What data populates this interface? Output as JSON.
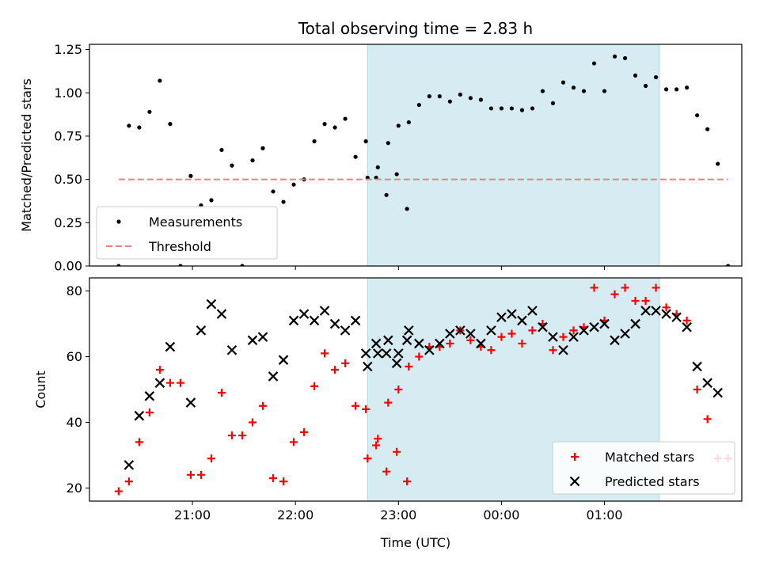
{
  "title": "Total observing time = 2.83 h",
  "chart_data": [
    {
      "type": "scatter",
      "ylabel": "Matched/Predicted stars",
      "ylim": [
        0,
        1.28
      ],
      "yticks": [
        "0.00",
        "0.25",
        "0.50",
        "0.75",
        "1.00",
        "1.25"
      ],
      "shaded_span": [
        "22:42",
        "01:32"
      ],
      "legend_position": "lower-left",
      "series": [
        {
          "name": "Measurements",
          "style": "point",
          "color": "#000000",
          "points": [
            [
              "20:17",
              0.0
            ],
            [
              "20:23",
              0.81
            ],
            [
              "20:29",
              0.8
            ],
            [
              "20:35",
              0.89
            ],
            [
              "20:41",
              1.07
            ],
            [
              "20:47",
              0.82
            ],
            [
              "20:53",
              0.0
            ],
            [
              "20:59",
              0.52
            ],
            [
              "21:05",
              0.35
            ],
            [
              "21:11",
              0.38
            ],
            [
              "21:17",
              0.67
            ],
            [
              "21:23",
              0.58
            ],
            [
              "21:29",
              0.0
            ],
            [
              "21:35",
              0.61
            ],
            [
              "21:41",
              0.68
            ],
            [
              "21:47",
              0.43
            ],
            [
              "21:53",
              0.37
            ],
            [
              "21:59",
              0.47
            ],
            [
              "22:05",
              0.5
            ],
            [
              "22:11",
              0.72
            ],
            [
              "22:17",
              0.82
            ],
            [
              "22:23",
              0.8
            ],
            [
              "22:29",
              0.85
            ],
            [
              "22:35",
              0.63
            ],
            [
              "22:41",
              0.72
            ],
            [
              "22:47",
              0.51
            ],
            [
              "22:53",
              0.41
            ],
            [
              "22:59",
              0.53
            ],
            [
              "23:05",
              0.33
            ],
            [
              "22:42",
              0.51
            ],
            [
              "22:48",
              0.57
            ],
            [
              "22:54",
              0.71
            ],
            [
              "23:00",
              0.81
            ],
            [
              "23:06",
              0.83
            ],
            [
              "23:12",
              0.93
            ],
            [
              "23:18",
              0.98
            ],
            [
              "23:24",
              0.98
            ],
            [
              "23:30",
              0.95
            ],
            [
              "23:36",
              0.99
            ],
            [
              "23:42",
              0.97
            ],
            [
              "23:48",
              0.96
            ],
            [
              "23:54",
              0.91
            ],
            [
              "00:00",
              0.91
            ],
            [
              "00:06",
              0.91
            ],
            [
              "00:12",
              0.9
            ],
            [
              "00:18",
              0.91
            ],
            [
              "00:24",
              1.01
            ],
            [
              "00:30",
              0.94
            ],
            [
              "00:36",
              1.06
            ],
            [
              "00:42",
              1.03
            ],
            [
              "00:48",
              1.01
            ],
            [
              "00:54",
              1.17
            ],
            [
              "01:00",
              1.01
            ],
            [
              "01:06",
              1.21
            ],
            [
              "01:12",
              1.2
            ],
            [
              "01:18",
              1.1
            ],
            [
              "01:24",
              1.04
            ],
            [
              "01:30",
              1.09
            ],
            [
              "01:36",
              1.02
            ],
            [
              "01:42",
              1.02
            ],
            [
              "01:48",
              1.03
            ],
            [
              "01:54",
              0.87
            ],
            [
              "02:00",
              0.79
            ],
            [
              "02:06",
              0.59
            ],
            [
              "02:12",
              0.0
            ]
          ]
        },
        {
          "name": "Threshold",
          "style": "dashed-line",
          "color": "#f08080",
          "points": [
            [
              "20:17",
              0.5
            ],
            [
              "02:12",
              0.5
            ]
          ]
        }
      ]
    },
    {
      "type": "scatter",
      "xlabel": "Time (UTC)",
      "ylabel": "Count",
      "ylim": [
        16,
        84
      ],
      "yticks": [
        "20",
        "40",
        "60",
        "80"
      ],
      "xticks": [
        "21:00",
        "22:00",
        "23:00",
        "00:00",
        "01:00"
      ],
      "shaded_span": [
        "22:42",
        "01:32"
      ],
      "legend_position": "lower-right",
      "series": [
        {
          "name": "Matched stars",
          "style": "plus",
          "color": "#ff0000",
          "points": [
            [
              "20:17",
              19
            ],
            [
              "20:23",
              22
            ],
            [
              "20:29",
              34
            ],
            [
              "20:35",
              43
            ],
            [
              "20:41",
              56
            ],
            [
              "20:47",
              52
            ],
            [
              "20:53",
              52
            ],
            [
              "20:59",
              24
            ],
            [
              "21:05",
              24
            ],
            [
              "21:11",
              29
            ],
            [
              "21:17",
              49
            ],
            [
              "21:23",
              36
            ],
            [
              "21:29",
              36
            ],
            [
              "21:35",
              40
            ],
            [
              "21:41",
              45
            ],
            [
              "21:47",
              23
            ],
            [
              "21:53",
              22
            ],
            [
              "21:59",
              34
            ],
            [
              "22:05",
              37
            ],
            [
              "22:11",
              51
            ],
            [
              "22:17",
              61
            ],
            [
              "22:23",
              56
            ],
            [
              "22:29",
              58
            ],
            [
              "22:35",
              45
            ],
            [
              "22:41",
              44
            ],
            [
              "22:47",
              33
            ],
            [
              "22:53",
              25
            ],
            [
              "22:59",
              31
            ],
            [
              "23:05",
              22
            ],
            [
              "22:42",
              29
            ],
            [
              "22:48",
              35
            ],
            [
              "22:54",
              46
            ],
            [
              "23:00",
              50
            ],
            [
              "23:06",
              57
            ],
            [
              "23:12",
              60
            ],
            [
              "23:18",
              63
            ],
            [
              "23:24",
              63
            ],
            [
              "23:30",
              64
            ],
            [
              "23:36",
              68
            ],
            [
              "23:42",
              65
            ],
            [
              "23:48",
              63
            ],
            [
              "23:54",
              62
            ],
            [
              "00:00",
              66
            ],
            [
              "00:06",
              67
            ],
            [
              "00:12",
              64
            ],
            [
              "00:18",
              68
            ],
            [
              "00:24",
              70
            ],
            [
              "00:30",
              62
            ],
            [
              "00:36",
              66
            ],
            [
              "00:42",
              68
            ],
            [
              "00:48",
              69
            ],
            [
              "00:54",
              81
            ],
            [
              "01:00",
              71
            ],
            [
              "01:06",
              79
            ],
            [
              "01:12",
              81
            ],
            [
              "01:18",
              77
            ],
            [
              "01:24",
              77
            ],
            [
              "01:30",
              81
            ],
            [
              "01:36",
              75
            ],
            [
              "01:42",
              73
            ],
            [
              "01:48",
              71
            ],
            [
              "01:54",
              50
            ],
            [
              "02:00",
              41
            ],
            [
              "02:06",
              29
            ],
            [
              "02:12",
              29
            ]
          ]
        },
        {
          "name": "Predicted stars",
          "style": "x",
          "color": "#000000",
          "points": [
            [
              "20:23",
              27
            ],
            [
              "20:29",
              42
            ],
            [
              "20:35",
              48
            ],
            [
              "20:41",
              52
            ],
            [
              "20:47",
              63
            ],
            [
              "20:59",
              46
            ],
            [
              "21:05",
              68
            ],
            [
              "21:11",
              76
            ],
            [
              "21:17",
              73
            ],
            [
              "21:23",
              62
            ],
            [
              "21:35",
              65
            ],
            [
              "21:41",
              66
            ],
            [
              "21:47",
              54
            ],
            [
              "21:53",
              59
            ],
            [
              "21:59",
              71
            ],
            [
              "22:05",
              73
            ],
            [
              "22:11",
              71
            ],
            [
              "22:17",
              74
            ],
            [
              "22:23",
              70
            ],
            [
              "22:29",
              68
            ],
            [
              "22:35",
              71
            ],
            [
              "22:41",
              61
            ],
            [
              "22:47",
              64
            ],
            [
              "22:53",
              61
            ],
            [
              "22:59",
              58
            ],
            [
              "23:05",
              65
            ],
            [
              "22:42",
              57
            ],
            [
              "22:48",
              61
            ],
            [
              "22:54",
              65
            ],
            [
              "23:00",
              61
            ],
            [
              "23:06",
              68
            ],
            [
              "23:12",
              64
            ],
            [
              "23:18",
              62
            ],
            [
              "23:24",
              64
            ],
            [
              "23:30",
              67
            ],
            [
              "23:36",
              68
            ],
            [
              "23:42",
              67
            ],
            [
              "23:48",
              64
            ],
            [
              "23:54",
              68
            ],
            [
              "00:00",
              72
            ],
            [
              "00:06",
              73
            ],
            [
              "00:12",
              71
            ],
            [
              "00:18",
              74
            ],
            [
              "00:24",
              69
            ],
            [
              "00:30",
              66
            ],
            [
              "00:36",
              62
            ],
            [
              "00:42",
              66
            ],
            [
              "00:48",
              68
            ],
            [
              "00:54",
              69
            ],
            [
              "01:00",
              70
            ],
            [
              "01:06",
              65
            ],
            [
              "01:12",
              67
            ],
            [
              "01:18",
              70
            ],
            [
              "01:24",
              74
            ],
            [
              "01:30",
              74
            ],
            [
              "01:36",
              73
            ],
            [
              "01:42",
              72
            ],
            [
              "01:48",
              69
            ],
            [
              "01:54",
              57
            ],
            [
              "02:00",
              52
            ],
            [
              "02:06",
              49
            ]
          ]
        }
      ]
    }
  ]
}
